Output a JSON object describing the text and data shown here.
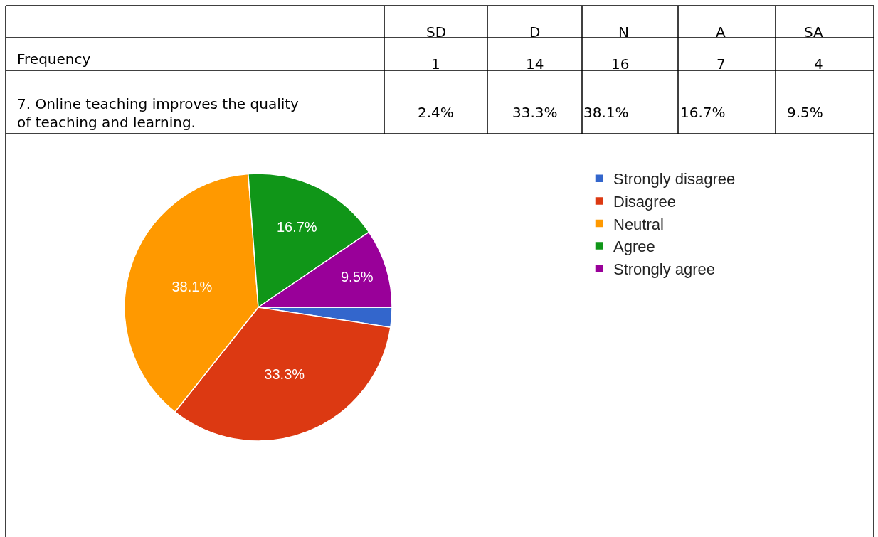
{
  "chart_data": [
    {
      "type": "other",
      "categories": [
        "SD",
        "D",
        "N",
        "A",
        "SA"
      ],
      "y_categories": [
        "Frequency",
        "7. Online teaching improves the quality of teaching and learning."
      ],
      "cell_labels": [
        [
          "1",
          "14",
          "16",
          "7",
          "4"
        ],
        [
          "2.4%",
          "33.3%",
          "38.1%",
          "16.7%",
          "9.5%"
        ]
      ]
    },
    {
      "type": "pie",
      "categories": [
        "Strongly disagree",
        "Disagree",
        "Neutral",
        "Agree",
        "Strongly agree"
      ],
      "values": [
        2.4,
        33.3,
        38.1,
        16.7,
        9.5
      ],
      "value_labels": [
        null,
        "33.3%",
        "38.1%",
        "16.7%",
        "9.5%"
      ],
      "colors": [
        "#3366cc",
        "#dc3912",
        "#ff9900",
        "#109618",
        "#990099"
      ],
      "legend": "right"
    }
  ]
}
